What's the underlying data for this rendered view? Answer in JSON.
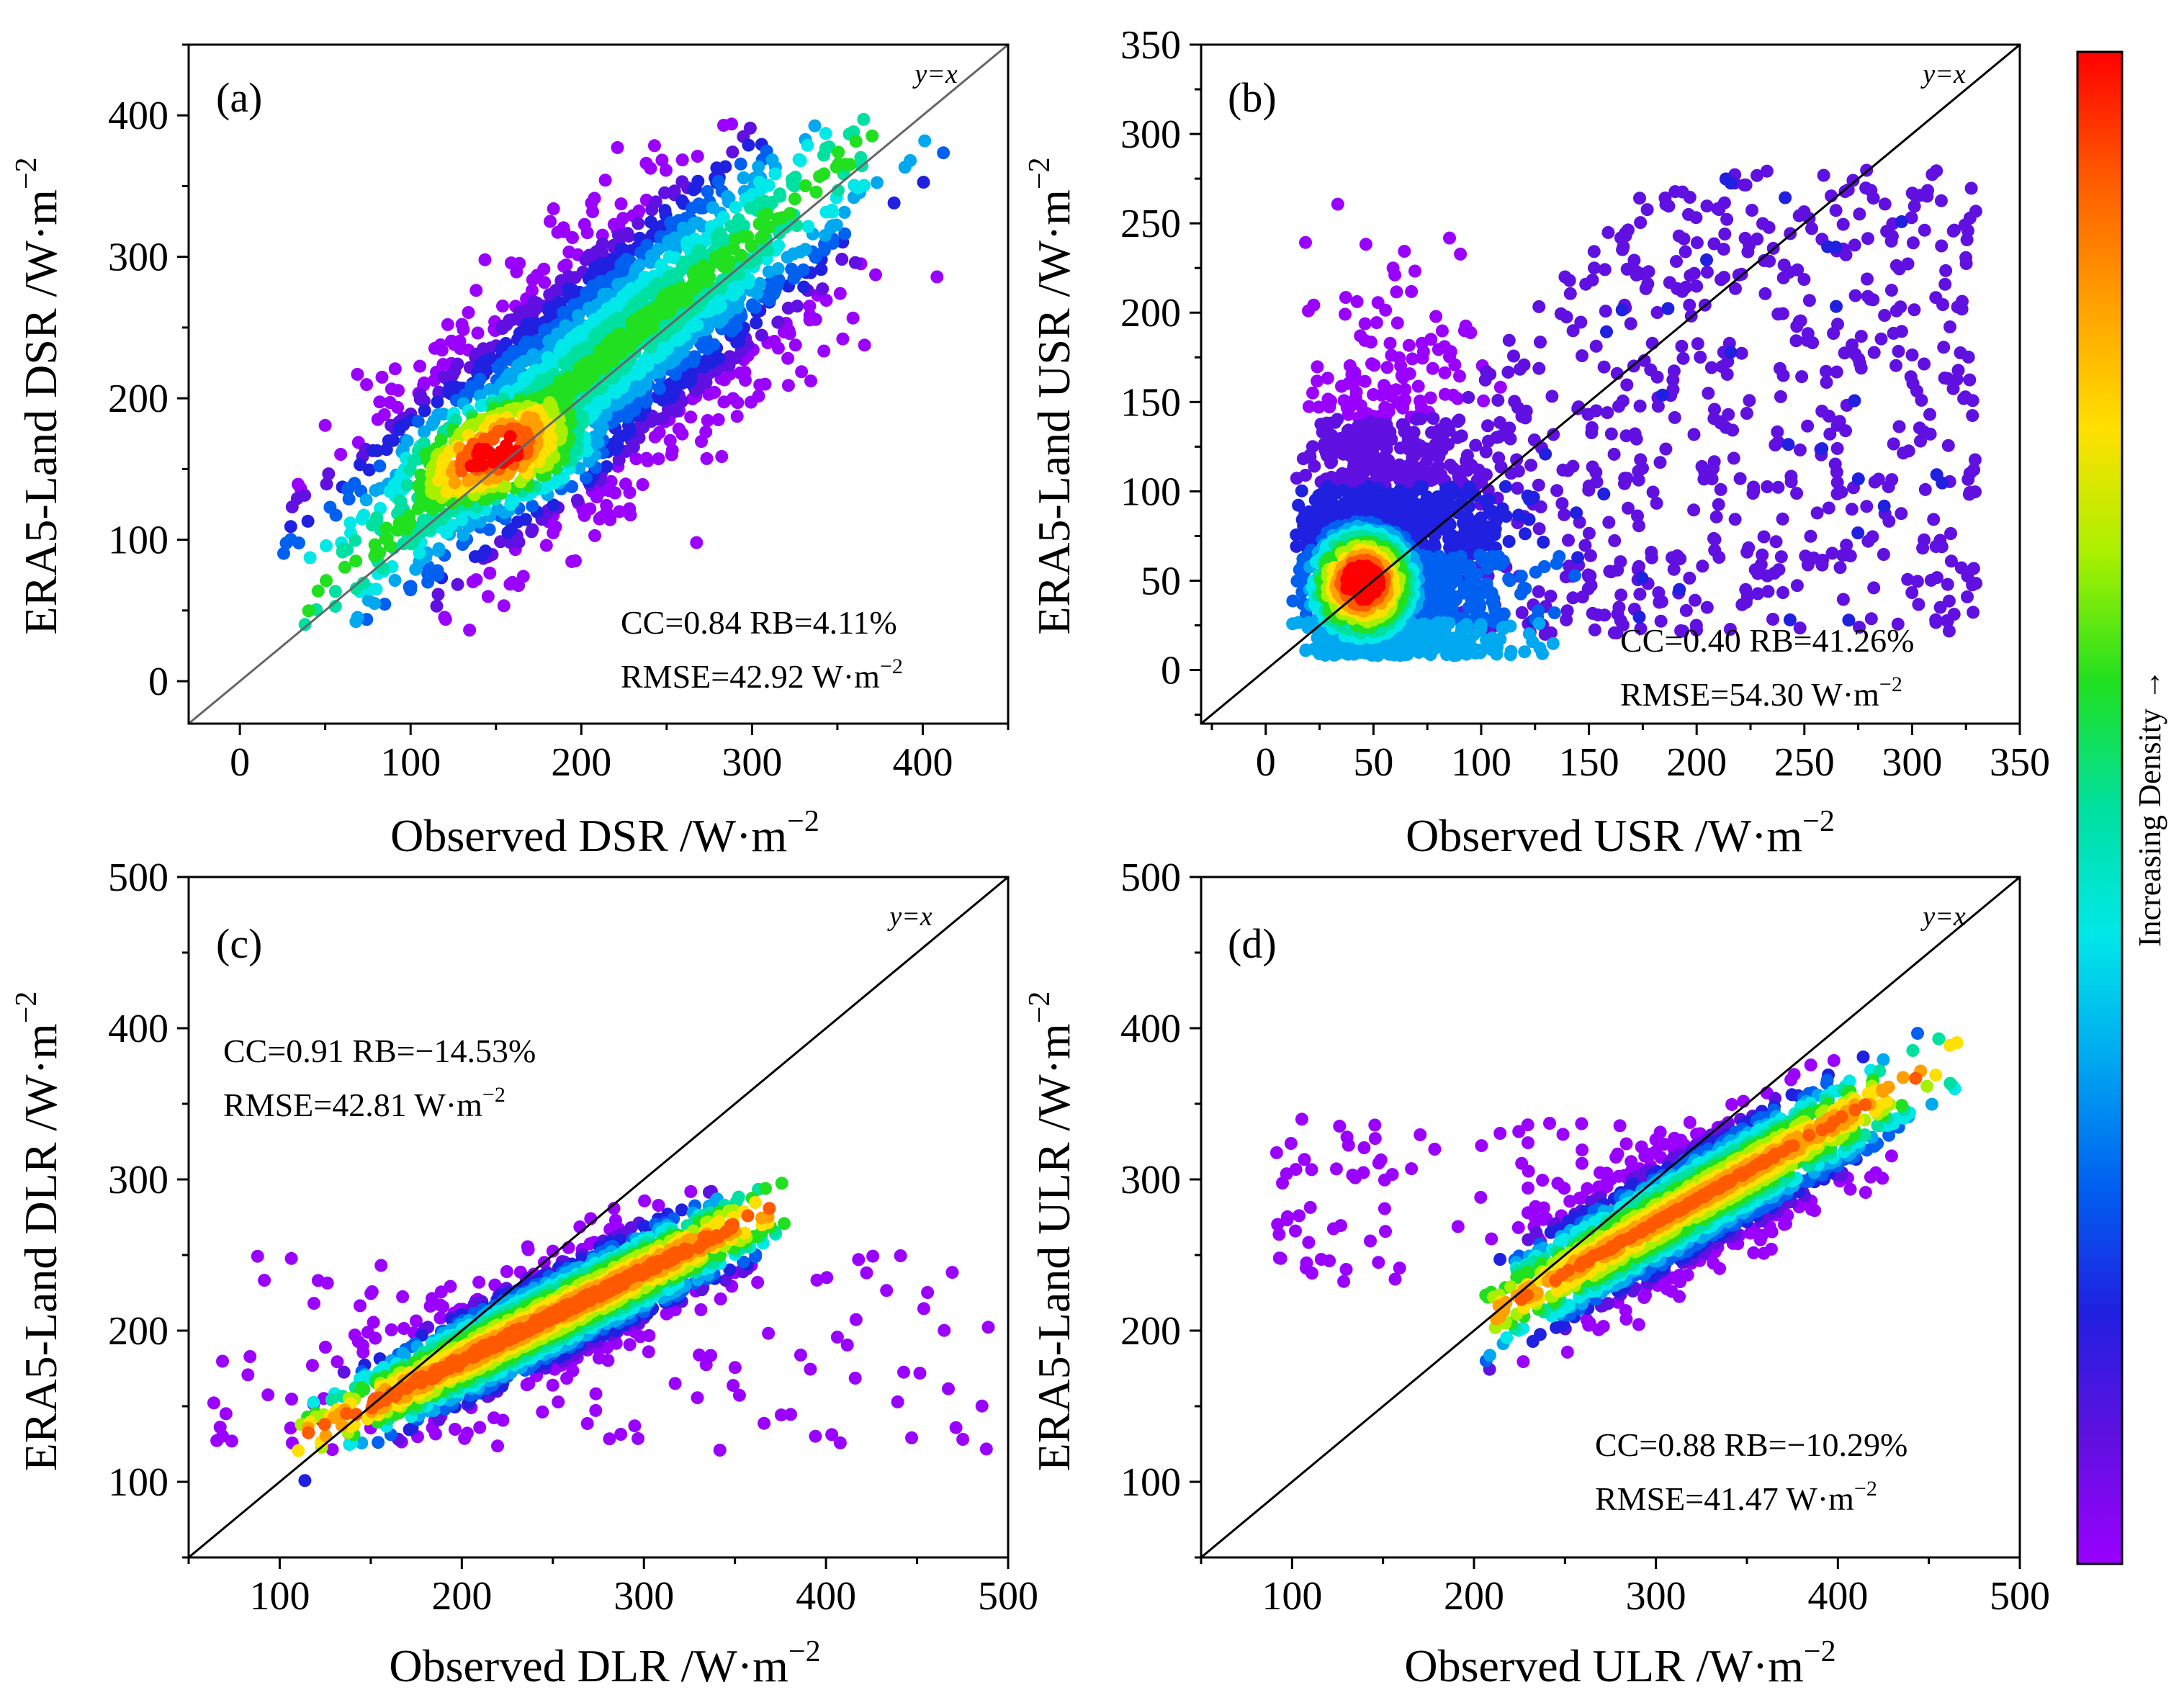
{
  "colorbar": {
    "title": "Increasing Density →",
    "colors": [
      "#ff0000",
      "#ff5a00",
      "#ffa000",
      "#ffe000",
      "#a8f000",
      "#20e020",
      "#00e0a0",
      "#00e8e8",
      "#00a8f0",
      "#0060f0",
      "#2020e0",
      "#6010e0",
      "#9a00ff"
    ]
  },
  "chart_data": [
    {
      "type": "scatter",
      "panel_label": "(a)",
      "xlabel": "Observed DSR /W·m",
      "ylabel": "ERA5-Land DSR /W·m",
      "unit_exponent": "−2",
      "xlim": [
        -30,
        450
      ],
      "ylim": [
        -30,
        450
      ],
      "xticks": [
        0,
        100,
        200,
        300,
        400
      ],
      "yticks": [
        0,
        100,
        200,
        300,
        400
      ],
      "xtick_labels": [
        "0",
        "100",
        "200",
        "300",
        "400"
      ],
      "ytick_labels": [
        "0",
        "100",
        "200",
        "300",
        "400"
      ],
      "identity_label": "y=x",
      "identity_color": "#666666",
      "stats_position": "bottom-right",
      "stats_line1": "CC=0.84 RB=4.11%",
      "stats_line2": "RMSE=42.92 W·m",
      "stats": {
        "CC": 0.84,
        "RB_percent": 4.11,
        "RMSE": 42.92
      },
      "density_model": {
        "center": [
          205,
          215
        ],
        "spread_along": 95,
        "spread_across": 32,
        "peak": [
          150,
          160
        ],
        "range": [
          30,
          420
        ]
      }
    },
    {
      "type": "scatter",
      "panel_label": "(b)",
      "xlabel": "Observed USR /W·m",
      "ylabel": "ERA5-Land USR /W·m",
      "unit_exponent": "−2",
      "xlim": [
        -30,
        350
      ],
      "ylim": [
        -30,
        350
      ],
      "xticks": [
        0,
        50,
        100,
        150,
        200,
        250,
        300,
        350
      ],
      "yticks": [
        0,
        50,
        100,
        150,
        200,
        250,
        300,
        350
      ],
      "xtick_labels": [
        "0",
        "50",
        "100",
        "150",
        "200",
        "250",
        "300",
        "350"
      ],
      "ytick_labels": [
        "0",
        "50",
        "100",
        "150",
        "200",
        "250",
        "300",
        "350"
      ],
      "identity_label": "y=x",
      "identity_color": "#000000",
      "stats_position": "bottom-right",
      "stats_line1": "CC=0.40 RB=41.26%",
      "stats_line2": "RMSE=54.30 W·m",
      "stats": {
        "CC": 0.4,
        "RB_percent": 41.26,
        "RMSE": 54.3
      },
      "density_model": {
        "peak": [
          45,
          50
        ],
        "range": [
          5,
          340
        ]
      }
    },
    {
      "type": "scatter",
      "panel_label": "(c)",
      "xlabel": "Observed DLR /W·m",
      "ylabel": "ERA5-Land DLR /W·m",
      "unit_exponent": "−2",
      "xlim": [
        50,
        500
      ],
      "ylim": [
        50,
        500
      ],
      "xticks": [
        100,
        200,
        300,
        400,
        500
      ],
      "yticks": [
        100,
        200,
        300,
        400,
        500
      ],
      "xtick_labels": [
        "100",
        "200",
        "300",
        "400",
        "500"
      ],
      "ytick_labels": [
        "100",
        "200",
        "300",
        "400",
        "500"
      ],
      "identity_label": "y=x",
      "identity_color": "#000000",
      "stats_position": "top-left",
      "stats_line1": "CC=0.91 RB=−14.53%",
      "stats_line2": "RMSE=42.81 W·m",
      "stats": {
        "CC": 0.91,
        "RB_percent": -14.53,
        "RMSE": 42.81
      },
      "density_model": {
        "peak": [
          180,
          155
        ],
        "range": [
          100,
          380
        ]
      }
    },
    {
      "type": "scatter",
      "panel_label": "(d)",
      "xlabel": "Observed ULR /W·m",
      "ylabel": "ERA5-Land ULR /W·m",
      "unit_exponent": "−2",
      "xlim": [
        50,
        500
      ],
      "ylim": [
        50,
        500
      ],
      "xticks": [
        100,
        200,
        300,
        400,
        500
      ],
      "yticks": [
        100,
        200,
        300,
        400,
        500
      ],
      "xtick_labels": [
        "100",
        "200",
        "300",
        "400",
        "500"
      ],
      "ytick_labels": [
        "100",
        "200",
        "300",
        "400",
        "500"
      ],
      "identity_label": "y=x",
      "identity_color": "#000000",
      "stats_position": "bottom-right",
      "stats_line1": "CC=0.88 RB=−10.29%",
      "stats_line2": "RMSE=41.47 W·m",
      "stats": {
        "CC": 0.88,
        "RB_percent": -10.29,
        "RMSE": 41.47
      },
      "density_model": {
        "peak": [
          380,
          360
        ],
        "range": [
          200,
          480
        ]
      }
    }
  ]
}
